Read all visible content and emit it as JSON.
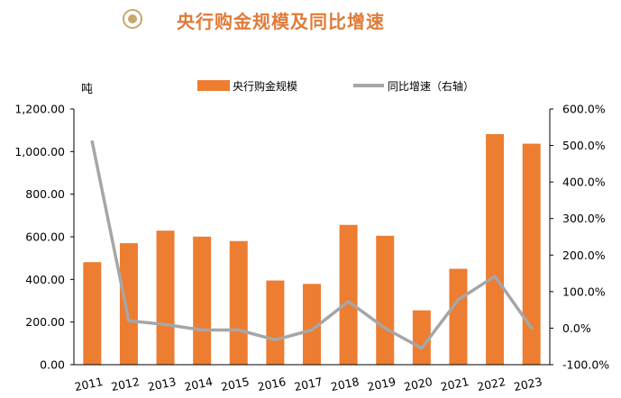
{
  "header": {
    "title": "央行购金规模及同比增速"
  },
  "colors": {
    "bar": "#ed7d31",
    "line": "#a6a6a6",
    "title": "#e07b39",
    "icon": "#c9a66b"
  },
  "chart_data": {
    "type": "bar",
    "title": "央行购金规模及同比增速",
    "left_unit": "吨",
    "categories": [
      "2011",
      "2012",
      "2013",
      "2014",
      "2015",
      "2016",
      "2017",
      "2018",
      "2019",
      "2020",
      "2021",
      "2022",
      "2023"
    ],
    "series": [
      {
        "name": "央行购金规模",
        "type": "bar",
        "axis": "left",
        "values": [
          481,
          570,
          629,
          601,
          580,
          395,
          379,
          656,
          605,
          255,
          450,
          1082,
          1037
        ]
      },
      {
        "name": "同比增速（右轴）",
        "type": "line",
        "axis": "right",
        "values": [
          510,
          20,
          10,
          -5,
          -5,
          -32,
          -5,
          73,
          0,
          -55,
          78,
          142,
          0
        ]
      }
    ],
    "y_left": {
      "min": 0,
      "max": 1200,
      "step": 200,
      "ticks": [
        "0.00",
        "200.00",
        "400.00",
        "600.00",
        "800.00",
        "1,000.00",
        "1,200.00"
      ]
    },
    "y_right": {
      "min": -100,
      "max": 600,
      "step": 100,
      "ticks": [
        "-100.0%",
        "0.0%",
        "100.0%",
        "200.0%",
        "300.0%",
        "400.0%",
        "500.0%",
        "600.0%"
      ]
    },
    "legend_position": "top",
    "grid": false
  }
}
